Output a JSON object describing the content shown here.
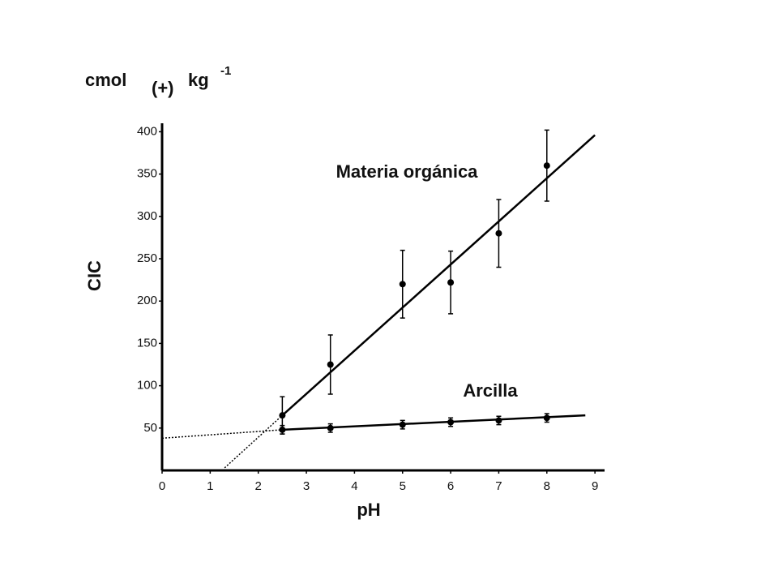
{
  "chart_data": {
    "type": "scatter",
    "y_unit": {
      "base": "cmol",
      "subscript": "(+)",
      "unit": "kg",
      "exponent": "-1"
    },
    "y_label": "CIC",
    "x_label": "pH",
    "xlim": [
      0,
      9.2
    ],
    "ylim": [
      0,
      410
    ],
    "xticks": [
      0,
      1,
      2,
      3,
      4,
      5,
      6,
      7,
      8,
      9
    ],
    "yticks": [
      50,
      100,
      150,
      200,
      250,
      300,
      350,
      400
    ],
    "series": [
      {
        "name": "Materia orgánica",
        "color": "#000000",
        "x": [
          2.5,
          3.5,
          5,
          6,
          7,
          8
        ],
        "values": [
          65,
          125,
          220,
          222,
          280,
          360
        ],
        "errors": [
          22,
          35,
          40,
          37,
          40,
          42
        ],
        "fit": {
          "x": [
            2.5,
            9
          ],
          "values": [
            65,
            396
          ]
        },
        "fit_dotted": {
          "x": [
            1.3,
            2.5
          ],
          "values": [
            3,
            65
          ]
        }
      },
      {
        "name": "Arcilla",
        "color": "#000000",
        "x": [
          2.5,
          3.5,
          5,
          6,
          7,
          8
        ],
        "values": [
          48,
          50,
          54,
          57,
          59,
          62
        ],
        "errors": [
          5,
          5,
          5,
          5,
          5,
          5
        ],
        "fit": {
          "x": [
            2.5,
            8.8
          ],
          "values": [
            48,
            65
          ]
        },
        "fit_dotted": {
          "x": [
            0,
            2.5
          ],
          "values": [
            38,
            48
          ]
        }
      }
    ]
  }
}
